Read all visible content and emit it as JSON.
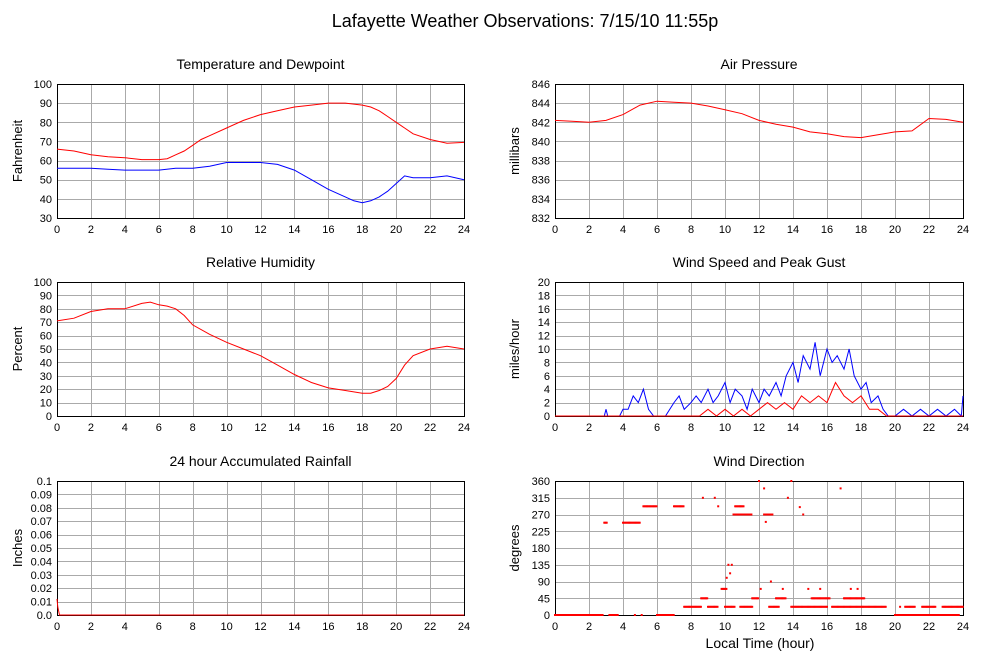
{
  "page": {
    "title": "Lafayette Weather Observations: 7/15/10 11:55p",
    "xaxis_label": "Local Time (hour)"
  },
  "colors": {
    "red": "#ff0000",
    "blue": "#0000ff",
    "grid": "#aaaaaa"
  },
  "chart_data": [
    {
      "id": "temp",
      "type": "line",
      "title": "Temperature and Dewpoint",
      "ylabel": "Fahrenheit",
      "xlim": [
        0,
        24
      ],
      "ylim": [
        30,
        100
      ],
      "xticks": [
        0,
        2,
        4,
        6,
        8,
        10,
        12,
        14,
        16,
        18,
        20,
        22,
        24
      ],
      "yticks": [
        30,
        40,
        50,
        60,
        70,
        80,
        90,
        100
      ],
      "series": [
        {
          "color": "#ff0000",
          "x": [
            0,
            1,
            2,
            3,
            4,
            5,
            6,
            6.5,
            7,
            7.5,
            8,
            8.5,
            9,
            10,
            11,
            12,
            13,
            14,
            15,
            16,
            17,
            18,
            18.5,
            19,
            19.5,
            20,
            20.5,
            21,
            22,
            23,
            24
          ],
          "y": [
            66,
            65,
            63,
            62,
            61.5,
            60.5,
            60.5,
            61,
            63,
            65,
            68,
            71,
            73,
            77,
            81,
            84,
            86,
            88,
            89,
            90,
            90,
            89,
            88,
            86,
            83,
            80,
            77,
            74,
            71,
            69,
            69.5
          ]
        },
        {
          "color": "#0000ff",
          "x": [
            0,
            1,
            2,
            3,
            4,
            5,
            6,
            7,
            8,
            9,
            10,
            11,
            12,
            13,
            14,
            15,
            16,
            17,
            17.5,
            18,
            18.5,
            19,
            19.5,
            20,
            20.5,
            21,
            22,
            23,
            24
          ],
          "y": [
            56,
            56,
            56,
            55.5,
            55,
            55,
            55,
            56,
            56,
            57,
            59,
            59,
            59,
            58,
            55,
            50,
            45,
            41,
            39,
            38,
            39,
            41,
            44,
            48,
            52,
            51,
            51,
            52,
            50
          ]
        }
      ]
    },
    {
      "id": "pressure",
      "type": "line",
      "title": "Air Pressure",
      "ylabel": "millibars",
      "xlim": [
        0,
        24
      ],
      "ylim": [
        832,
        846
      ],
      "xticks": [
        0,
        2,
        4,
        6,
        8,
        10,
        12,
        14,
        16,
        18,
        20,
        22,
        24
      ],
      "yticks": [
        832,
        834,
        836,
        838,
        840,
        842,
        844,
        846
      ],
      "series": [
        {
          "color": "#ff0000",
          "x": [
            0,
            1,
            2,
            3,
            4,
            5,
            6,
            7,
            8,
            9,
            10,
            11,
            12,
            13,
            14,
            15,
            16,
            17,
            18,
            19,
            20,
            21,
            22,
            23,
            24
          ],
          "y": [
            842.2,
            842.1,
            842.0,
            842.2,
            842.8,
            843.8,
            844.2,
            844.1,
            844.0,
            843.7,
            843.3,
            842.9,
            842.2,
            841.8,
            841.5,
            841.0,
            840.8,
            840.5,
            840.4,
            840.7,
            841.0,
            841.1,
            842.4,
            842.3,
            842.0
          ]
        }
      ]
    },
    {
      "id": "humidity",
      "type": "line",
      "title": "Relative Humidity",
      "ylabel": "Percent",
      "xlim": [
        0,
        24
      ],
      "ylim": [
        0,
        100
      ],
      "xticks": [
        0,
        2,
        4,
        6,
        8,
        10,
        12,
        14,
        16,
        18,
        20,
        22,
        24
      ],
      "yticks": [
        0,
        10,
        20,
        30,
        40,
        50,
        60,
        70,
        80,
        90,
        100
      ],
      "series": [
        {
          "color": "#ff0000",
          "x": [
            0,
            1,
            2,
            3,
            4,
            5,
            5.5,
            6,
            6.5,
            7,
            7.5,
            8,
            9,
            10,
            11,
            12,
            13,
            14,
            15,
            16,
            17,
            18,
            18.5,
            19,
            19.5,
            20,
            20.5,
            21,
            22,
            23,
            24
          ],
          "y": [
            71,
            73,
            78,
            80,
            80,
            84,
            85,
            83,
            82,
            80,
            75,
            68,
            61,
            55,
            50,
            45,
            38,
            31,
            25,
            21,
            19,
            17,
            17,
            19,
            22,
            28,
            38,
            45,
            50,
            52,
            50
          ]
        }
      ]
    },
    {
      "id": "wind",
      "type": "line",
      "title": "Wind Speed and Peak Gust",
      "ylabel": "miles/hour",
      "xlim": [
        0,
        24
      ],
      "ylim": [
        0,
        20
      ],
      "xticks": [
        0,
        2,
        4,
        6,
        8,
        10,
        12,
        14,
        16,
        18,
        20,
        22,
        24
      ],
      "yticks": [
        0,
        2,
        4,
        6,
        8,
        10,
        12,
        14,
        16,
        18,
        20
      ],
      "series": [
        {
          "color": "#0000ff",
          "x": [
            0,
            2.9,
            3,
            3.1,
            3.8,
            4,
            4.3,
            4.6,
            4.9,
            5.2,
            5.5,
            5.8,
            6,
            6.5,
            7,
            7.3,
            7.6,
            8,
            8.3,
            8.6,
            9,
            9.3,
            9.6,
            10,
            10.3,
            10.6,
            11,
            11.3,
            11.6,
            12,
            12.3,
            12.6,
            13,
            13.3,
            13.6,
            14,
            14.3,
            14.6,
            15,
            15.3,
            15.6,
            16,
            16.3,
            16.6,
            17,
            17.3,
            17.6,
            18,
            18.3,
            18.6,
            19,
            19.3,
            19.6,
            20,
            20.5,
            21,
            21.5,
            22,
            22.5,
            23,
            23.5,
            23.9,
            24
          ],
          "y": [
            0,
            0,
            1,
            0,
            0,
            1,
            1,
            3,
            2,
            4,
            1,
            0,
            0,
            0,
            2,
            3,
            1,
            2,
            3,
            2,
            4,
            2,
            3,
            5,
            2,
            4,
            3,
            1,
            4,
            2,
            4,
            3,
            5,
            3,
            6,
            8,
            5,
            9,
            7,
            11,
            6,
            10,
            8,
            9,
            7,
            10,
            6,
            4,
            5,
            2,
            3,
            1,
            0,
            0,
            1,
            0,
            1,
            0,
            1,
            0,
            1,
            0,
            3
          ]
        },
        {
          "color": "#ff0000",
          "x": [
            0,
            8.5,
            9,
            9.5,
            10,
            10.5,
            11,
            11.5,
            12,
            12.5,
            13,
            13.5,
            14,
            14.5,
            15,
            15.5,
            16,
            16.5,
            17,
            17.5,
            18,
            18.5,
            19,
            19.5,
            20,
            24
          ],
          "y": [
            0,
            0,
            1,
            0,
            1,
            0,
            1,
            0,
            1,
            2,
            1,
            2,
            1,
            3,
            2,
            3,
            2,
            5,
            3,
            2,
            3,
            1,
            1,
            0,
            0,
            0
          ]
        }
      ]
    },
    {
      "id": "rain",
      "type": "line",
      "title": "24 hour Accumulated Rainfall",
      "ylabel": "Inches",
      "xlim": [
        0,
        24
      ],
      "ylim": [
        0,
        0.1
      ],
      "xticks": [
        0,
        2,
        4,
        6,
        8,
        10,
        12,
        14,
        16,
        18,
        20,
        22,
        24
      ],
      "yticks": [
        "0.0",
        "0.01",
        "0.02",
        "0.03",
        "0.04",
        "0.05",
        "0.06",
        "0.07",
        "0.08",
        "0.09",
        "0.1"
      ],
      "series": [
        {
          "color": "#ff0000",
          "x": [
            0,
            0.05,
            0.15,
            24
          ],
          "y": [
            0.012,
            0.006,
            0,
            0
          ]
        }
      ]
    },
    {
      "id": "direction",
      "type": "scatter",
      "title": "Wind Direction",
      "ylabel": "degrees",
      "xlim": [
        0,
        24
      ],
      "ylim": [
        0,
        360
      ],
      "xticks": [
        0,
        2,
        4,
        6,
        8,
        10,
        12,
        14,
        16,
        18,
        20,
        22,
        24
      ],
      "yticks": [
        0,
        45,
        90,
        135,
        180,
        225,
        270,
        315,
        360
      ],
      "segments": [
        {
          "x": [
            0.0,
            2.8
          ],
          "y": 0
        },
        {
          "x": [
            3.2,
            3.7
          ],
          "y": 0
        },
        {
          "x": [
            2.9,
            3.1
          ],
          "y": 248
        },
        {
          "x": [
            4.0,
            5.0
          ],
          "y": 248
        },
        {
          "x": [
            5.2,
            6.0
          ],
          "y": 292
        },
        {
          "x": [
            6.0,
            7.0
          ],
          "y": 0
        },
        {
          "x": [
            7.0,
            7.6
          ],
          "y": 292
        },
        {
          "x": [
            7.6,
            8.6
          ],
          "y": 22
        },
        {
          "x": [
            8.6,
            9.0
          ],
          "y": 45
        },
        {
          "x": [
            9.0,
            9.6
          ],
          "y": 22
        },
        {
          "x": [
            9.8,
            10.1
          ],
          "y": 70
        },
        {
          "x": [
            10.6,
            11.1
          ],
          "y": 292
        },
        {
          "x": [
            10.5,
            11.2
          ],
          "y": 270
        },
        {
          "x": [
            11.2,
            11.6
          ],
          "y": 270
        },
        {
          "x": [
            12.3,
            12.8
          ],
          "y": 270
        },
        {
          "x": [
            10.0,
            10.6
          ],
          "y": 22
        },
        {
          "x": [
            10.9,
            11.6
          ],
          "y": 22
        },
        {
          "x": [
            11.6,
            12.0
          ],
          "y": 45
        },
        {
          "x": [
            12.6,
            13.2
          ],
          "y": 22
        },
        {
          "x": [
            13.0,
            13.6
          ],
          "y": 45
        },
        {
          "x": [
            13.9,
            16.0
          ],
          "y": 22
        },
        {
          "x": [
            15.1,
            16.2
          ],
          "y": 45
        },
        {
          "x": [
            16.3,
            19.5
          ],
          "y": 22
        },
        {
          "x": [
            17.0,
            18.2
          ],
          "y": 45
        },
        {
          "x": [
            20.0,
            21.9
          ],
          "y": 0
        },
        {
          "x": [
            22.0,
            23.8
          ],
          "y": 0
        },
        {
          "x": [
            20.6,
            21.2
          ],
          "y": 22
        },
        {
          "x": [
            21.6,
            22.4
          ],
          "y": 22
        },
        {
          "x": [
            22.8,
            24.0
          ],
          "y": 22
        }
      ],
      "points": [
        {
          "x": 4.7,
          "y": 0
        },
        {
          "x": 5.1,
          "y": 0
        },
        {
          "x": 8.7,
          "y": 315
        },
        {
          "x": 9.4,
          "y": 315
        },
        {
          "x": 9.6,
          "y": 292
        },
        {
          "x": 10.1,
          "y": 100
        },
        {
          "x": 10.2,
          "y": 135
        },
        {
          "x": 10.4,
          "y": 135
        },
        {
          "x": 10.3,
          "y": 112
        },
        {
          "x": 12.0,
          "y": 360
        },
        {
          "x": 12.3,
          "y": 340
        },
        {
          "x": 12.4,
          "y": 250
        },
        {
          "x": 12.1,
          "y": 70
        },
        {
          "x": 12.7,
          "y": 90
        },
        {
          "x": 13.4,
          "y": 70
        },
        {
          "x": 13.9,
          "y": 360
        },
        {
          "x": 13.7,
          "y": 315
        },
        {
          "x": 14.4,
          "y": 290
        },
        {
          "x": 14.6,
          "y": 270
        },
        {
          "x": 14.9,
          "y": 70
        },
        {
          "x": 15.6,
          "y": 70
        },
        {
          "x": 16.8,
          "y": 340
        },
        {
          "x": 17.4,
          "y": 70
        },
        {
          "x": 17.8,
          "y": 70
        },
        {
          "x": 20.3,
          "y": 22
        }
      ]
    }
  ]
}
